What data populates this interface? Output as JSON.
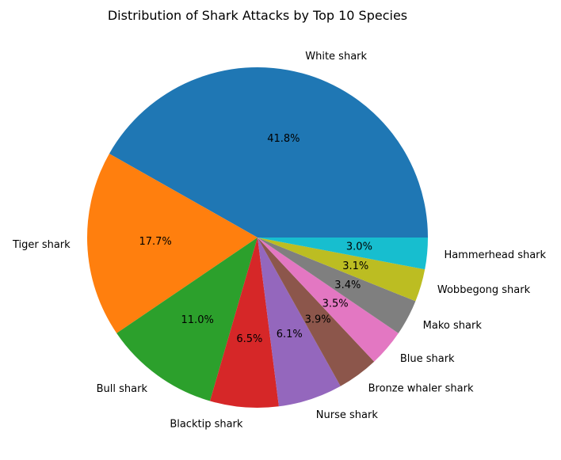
{
  "chart_data": {
    "type": "pie",
    "title": "Distribution of Shark Attacks by Top 10 Species",
    "start_angle_deg": 0,
    "direction": "counterclockwise",
    "slices": [
      {
        "label": "White shark",
        "value": 41.8,
        "pct_label": "41.8%",
        "color": "#1f77b4"
      },
      {
        "label": "Tiger shark",
        "value": 17.7,
        "pct_label": "17.7%",
        "color": "#ff7f0e"
      },
      {
        "label": "Bull shark",
        "value": 11.0,
        "pct_label": "11.0%",
        "color": "#2ca02c"
      },
      {
        "label": "Blacktip shark",
        "value": 6.5,
        "pct_label": "6.5%",
        "color": "#d62728"
      },
      {
        "label": "Nurse shark",
        "value": 6.1,
        "pct_label": "6.1%",
        "color": "#9467bd"
      },
      {
        "label": "Bronze whaler shark",
        "value": 3.9,
        "pct_label": "3.9%",
        "color": "#8c564b"
      },
      {
        "label": "Blue shark",
        "value": 3.5,
        "pct_label": "3.5%",
        "color": "#e377c2"
      },
      {
        "label": "Mako shark",
        "value": 3.4,
        "pct_label": "3.4%",
        "color": "#7f7f7f"
      },
      {
        "label": "Wobbegong shark",
        "value": 3.1,
        "pct_label": "3.1%",
        "color": "#bcbd22"
      },
      {
        "label": "Hammerhead shark",
        "value": 3.0,
        "pct_label": "3.0%",
        "color": "#17becf"
      }
    ]
  }
}
